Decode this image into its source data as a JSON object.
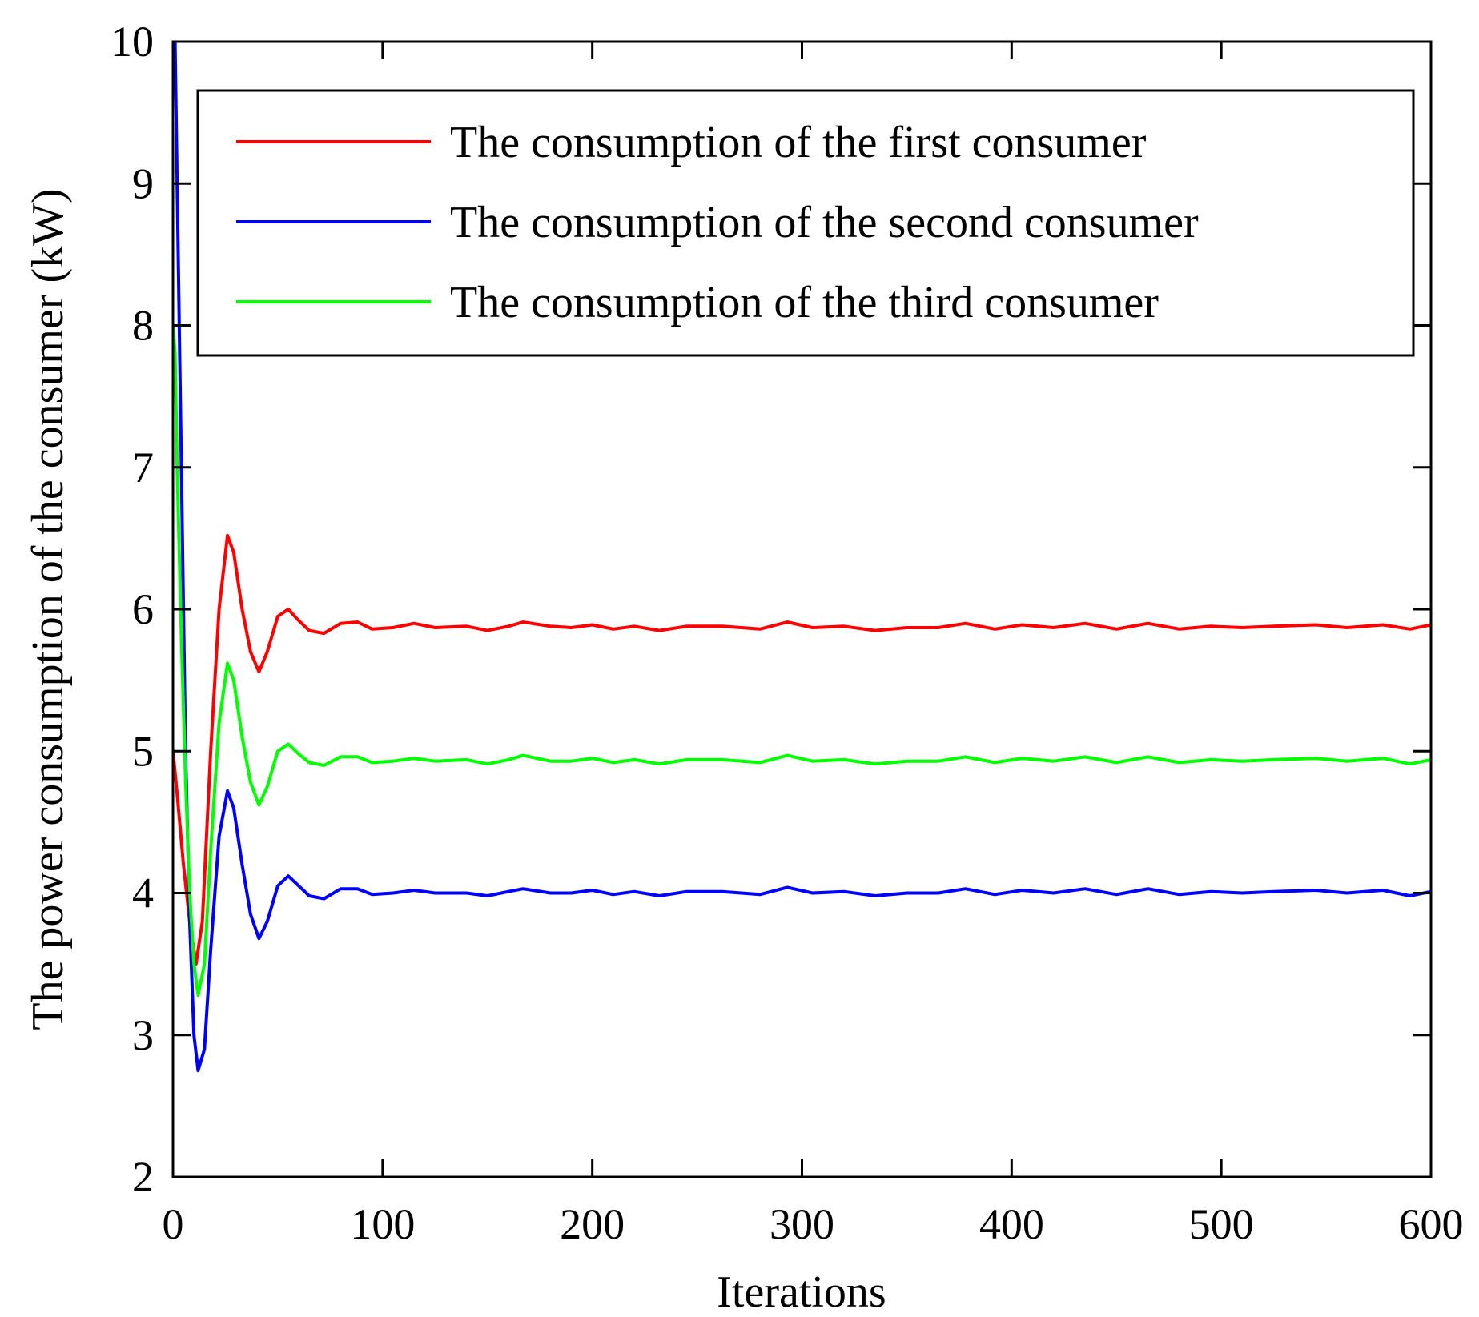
{
  "chart_data": {
    "type": "line",
    "title": "",
    "xlabel": "Iterations",
    "ylabel": "The power consumption of the consumer (kW)",
    "xlim": [
      0,
      600
    ],
    "ylim": [
      2,
      10
    ],
    "xticks": [
      0,
      100,
      200,
      300,
      400,
      500,
      600
    ],
    "yticks": [
      2,
      3,
      4,
      5,
      6,
      7,
      8,
      9,
      10
    ],
    "grid": false,
    "legend_position": "top-right",
    "series": [
      {
        "name": "The consumption of the first consumer",
        "color": "#ff0000",
        "x": [
          0,
          2,
          5,
          8,
          11,
          14,
          18,
          22,
          26,
          29,
          33,
          37,
          41,
          45,
          50,
          55,
          60,
          65,
          72,
          80,
          88,
          95,
          105,
          115,
          125,
          140,
          150,
          160,
          167,
          180,
          190,
          200,
          210,
          220,
          232,
          245,
          262,
          280,
          293,
          305,
          320,
          335,
          350,
          365,
          378,
          392,
          405,
          420,
          435,
          450,
          465,
          480,
          495,
          510,
          525,
          545,
          560,
          577,
          590,
          600
        ],
        "y": [
          5.0,
          4.7,
          4.2,
          3.8,
          3.5,
          3.8,
          5.0,
          6.0,
          6.52,
          6.4,
          6.0,
          5.7,
          5.56,
          5.7,
          5.95,
          6.0,
          5.92,
          5.85,
          5.83,
          5.9,
          5.91,
          5.86,
          5.87,
          5.9,
          5.87,
          5.88,
          5.85,
          5.88,
          5.91,
          5.88,
          5.87,
          5.89,
          5.86,
          5.88,
          5.85,
          5.88,
          5.88,
          5.86,
          5.91,
          5.87,
          5.88,
          5.85,
          5.87,
          5.87,
          5.9,
          5.86,
          5.89,
          5.87,
          5.9,
          5.86,
          5.9,
          5.86,
          5.88,
          5.87,
          5.88,
          5.89,
          5.87,
          5.89,
          5.86,
          5.89
        ]
      },
      {
        "name": "The consumption of the second consumer",
        "color": "#0000ff",
        "x": [
          0,
          1,
          2,
          4,
          6,
          8,
          10,
          12,
          15,
          18,
          22,
          26,
          29,
          33,
          37,
          41,
          45,
          50,
          55,
          60,
          65,
          72,
          80,
          88,
          95,
          105,
          115,
          125,
          140,
          150,
          160,
          167,
          180,
          190,
          200,
          210,
          220,
          232,
          245,
          262,
          280,
          293,
          305,
          320,
          335,
          350,
          365,
          378,
          392,
          405,
          420,
          435,
          450,
          465,
          480,
          495,
          510,
          525,
          545,
          560,
          577,
          590,
          600
        ],
        "y": [
          10.0,
          10.0,
          9.0,
          7.0,
          5.0,
          3.8,
          3.0,
          2.75,
          2.9,
          3.6,
          4.4,
          4.72,
          4.6,
          4.2,
          3.85,
          3.68,
          3.8,
          4.05,
          4.12,
          4.05,
          3.98,
          3.96,
          4.03,
          4.03,
          3.99,
          4.0,
          4.02,
          4.0,
          4.0,
          3.98,
          4.01,
          4.03,
          4.0,
          4.0,
          4.02,
          3.99,
          4.01,
          3.98,
          4.01,
          4.01,
          3.99,
          4.04,
          4.0,
          4.01,
          3.98,
          4.0,
          4.0,
          4.03,
          3.99,
          4.02,
          4.0,
          4.03,
          3.99,
          4.03,
          3.99,
          4.01,
          4.0,
          4.01,
          4.02,
          4.0,
          4.02,
          3.98,
          4.01
        ]
      },
      {
        "name": "The consumption of the third consumer",
        "color": "#00ff00",
        "x": [
          0,
          1,
          2,
          4,
          6,
          8,
          10,
          12,
          15,
          18,
          22,
          26,
          29,
          33,
          37,
          41,
          45,
          50,
          55,
          60,
          65,
          72,
          80,
          88,
          95,
          105,
          115,
          125,
          140,
          150,
          160,
          167,
          180,
          190,
          200,
          210,
          220,
          232,
          245,
          262,
          280,
          293,
          305,
          320,
          335,
          350,
          365,
          378,
          392,
          405,
          420,
          435,
          450,
          465,
          480,
          495,
          510,
          525,
          545,
          560,
          577,
          590,
          600
        ],
        "y": [
          8.0,
          7.8,
          7.0,
          5.8,
          4.8,
          4.0,
          3.5,
          3.28,
          3.5,
          4.3,
          5.2,
          5.62,
          5.5,
          5.1,
          4.78,
          4.62,
          4.75,
          5.0,
          5.05,
          4.98,
          4.92,
          4.9,
          4.96,
          4.96,
          4.92,
          4.93,
          4.95,
          4.93,
          4.94,
          4.91,
          4.94,
          4.97,
          4.93,
          4.93,
          4.95,
          4.92,
          4.94,
          4.91,
          4.94,
          4.94,
          4.92,
          4.97,
          4.93,
          4.94,
          4.91,
          4.93,
          4.93,
          4.96,
          4.92,
          4.95,
          4.93,
          4.96,
          4.92,
          4.96,
          4.92,
          4.94,
          4.93,
          4.94,
          4.95,
          4.93,
          4.95,
          4.91,
          4.94
        ]
      }
    ]
  }
}
